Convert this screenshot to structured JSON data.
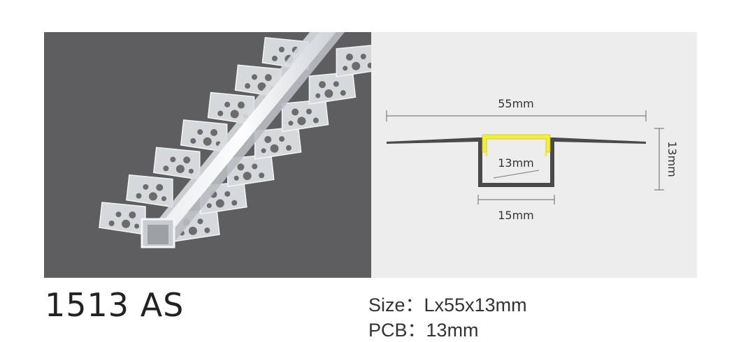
{
  "product": {
    "model": "1513 AS"
  },
  "diagram": {
    "width_label": "55mm",
    "height_label": "13mm",
    "inner_width_label": "13mm",
    "outer_width_label": "15mm"
  },
  "specs": {
    "size_label": "Size",
    "size_value": "Lx55x13mm",
    "pcb_label": "PCB",
    "pcb_value": "13mm",
    "separator": "："
  },
  "colors": {
    "photo_background": "#5e5d5f",
    "diagram_background": "#ededed",
    "profile": "#4a4a4a",
    "diffuser": "#f2ee3c"
  }
}
